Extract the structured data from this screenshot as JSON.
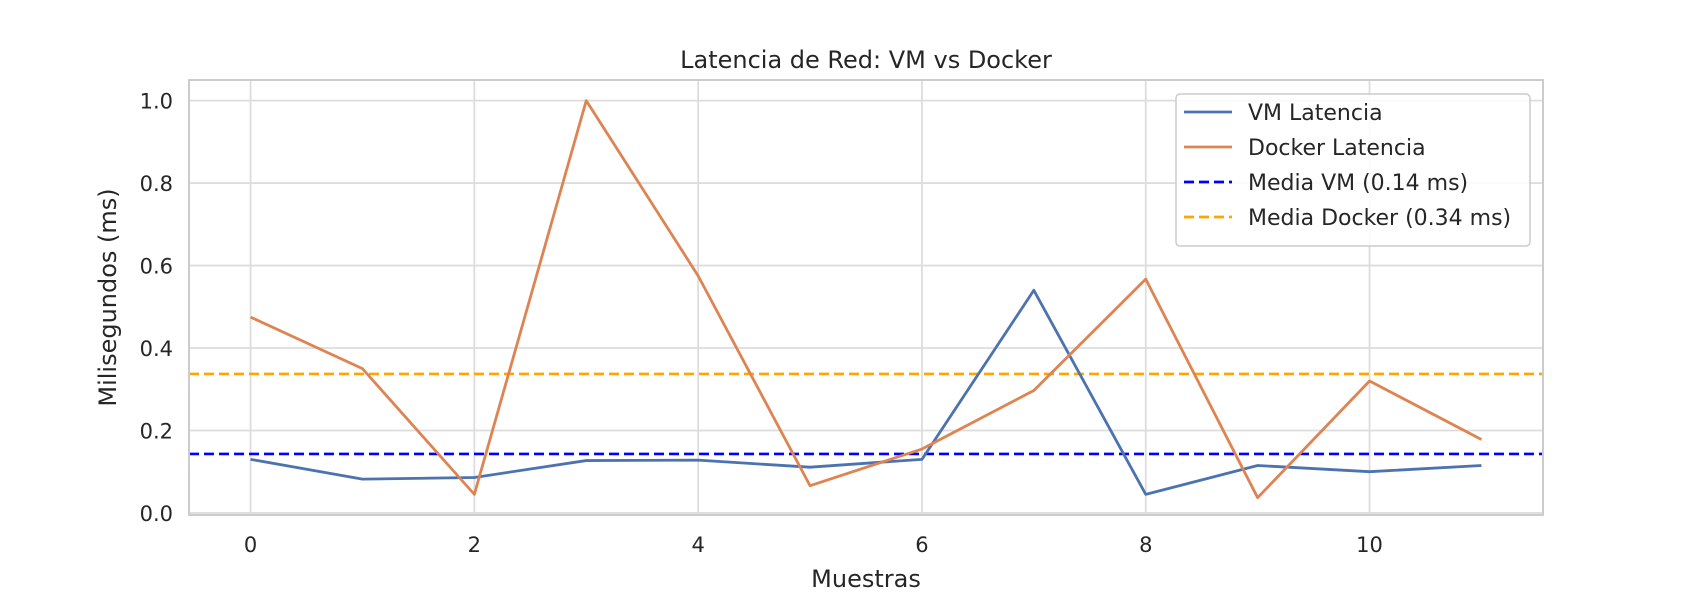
{
  "chart_data": {
    "type": "line",
    "title": "Latencia de Red: VM vs Docker",
    "xlabel": "Muestras",
    "ylabel": "Milisegundos (ms)",
    "xlim": [
      -0.55,
      11.55
    ],
    "ylim": [
      -0.005,
      1.05
    ],
    "xticks": [
      0,
      2,
      4,
      6,
      8,
      10
    ],
    "xtick_labels": [
      "0",
      "2",
      "4",
      "6",
      "8",
      "10"
    ],
    "yticks": [
      0.0,
      0.2,
      0.4,
      0.6,
      0.8,
      1.0
    ],
    "ytick_labels": [
      "0.0",
      "0.2",
      "0.4",
      "0.6",
      "0.8",
      "1.0"
    ],
    "grid": true,
    "legend_position": "top-right",
    "x": [
      0,
      1,
      2,
      3,
      4,
      5,
      6,
      7,
      8,
      9,
      10,
      11
    ],
    "series": [
      {
        "name": "VM Latencia",
        "color": "#4c72b0",
        "style": "solid",
        "values": [
          0.13,
          0.082,
          0.086,
          0.127,
          0.128,
          0.111,
          0.13,
          0.54,
          0.045,
          0.115,
          0.1,
          0.115
        ]
      },
      {
        "name": "Docker Latencia",
        "color": "#dd8452",
        "style": "solid",
        "values": [
          0.475,
          0.35,
          0.045,
          1.0,
          0.575,
          0.066,
          0.155,
          0.297,
          0.567,
          0.037,
          0.32,
          0.178
        ]
      }
    ],
    "hlines": [
      {
        "name": "Media VM (0.14 ms)",
        "value": 0.143,
        "color": "#0000ff",
        "style": "dashed"
      },
      {
        "name": "Media Docker (0.34 ms)",
        "value": 0.337,
        "color": "#ffa500",
        "style": "dashed"
      }
    ]
  }
}
